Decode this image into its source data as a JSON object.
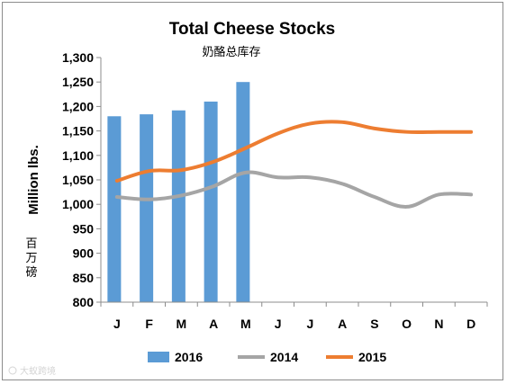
{
  "chart_data": {
    "type": "bar+line",
    "title": "Total Cheese Stocks",
    "subtitle": "奶酪总库存",
    "ylabel": "Million lbs.",
    "ylabel_secondary": "百万磅",
    "categories": [
      "J",
      "F",
      "M",
      "A",
      "M",
      "J",
      "J",
      "A",
      "S",
      "O",
      "N",
      "D"
    ],
    "ylim": [
      800,
      1300
    ],
    "yticks": [
      "800",
      "850",
      "900",
      "950",
      "1,000",
      "1,050",
      "1,100",
      "1,150",
      "1,200",
      "1,250",
      "1,300"
    ],
    "ytick_values": [
      800,
      850,
      900,
      950,
      1000,
      1050,
      1100,
      1150,
      1200,
      1250,
      1300
    ],
    "grid": false,
    "legend_position": "bottom",
    "series": [
      {
        "name": "2016",
        "kind": "bar",
        "color": "#5b9bd5",
        "values": [
          1180,
          1184,
          1192,
          1210,
          1250,
          null,
          null,
          null,
          null,
          null,
          null,
          null
        ]
      },
      {
        "name": "2014",
        "kind": "line",
        "color": "#a5a5a5",
        "values": [
          1015,
          1010,
          1018,
          1037,
          1065,
          1055,
          1055,
          1042,
          1015,
          995,
          1020,
          1020
        ]
      },
      {
        "name": "2015",
        "kind": "line",
        "color": "#ed7d31",
        "values": [
          1048,
          1068,
          1070,
          1087,
          1115,
          1145,
          1165,
          1168,
          1155,
          1148,
          1148,
          1148
        ]
      }
    ]
  },
  "watermark": "大蚁跨境"
}
